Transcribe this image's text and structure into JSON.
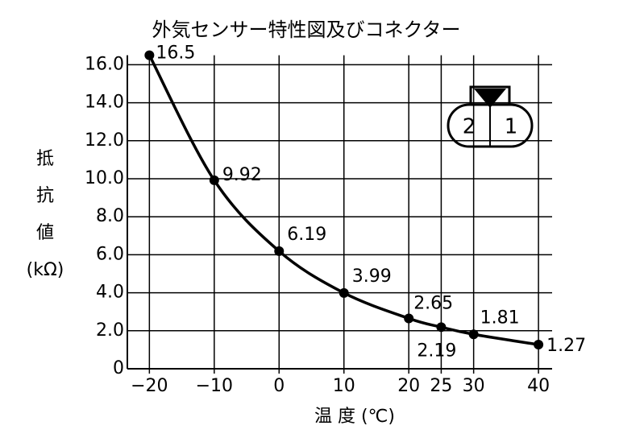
{
  "chart_data": {
    "type": "line",
    "title": "外気センサー特性図及びコネクター",
    "ylabel_lines": [
      "抵",
      "抗",
      "値",
      "(kΩ)"
    ],
    "xlabel": "温 度 (℃)",
    "x": [
      -20,
      -10,
      0,
      10,
      20,
      25,
      30,
      40
    ],
    "series": [
      {
        "color": "#000000",
        "values": [
          16.5,
          9.92,
          6.19,
          3.99,
          2.65,
          2.19,
          1.81,
          1.27
        ]
      }
    ],
    "xlim": [
      -23.4,
      42.1
    ],
    "ylim": [
      0,
      16.5
    ],
    "xticks": [
      {
        "value": -20,
        "label": "−20"
      },
      {
        "value": -10,
        "label": "−10"
      },
      0,
      10,
      20,
      25,
      30,
      40
    ],
    "yticks": [
      0,
      {
        "value": 2,
        "label": "2.0"
      },
      {
        "value": 4,
        "label": "4.0"
      },
      {
        "value": 6,
        "label": "6.0"
      },
      {
        "value": 8,
        "label": "8.0"
      },
      {
        "value": 10,
        "label": "10.0"
      },
      {
        "value": 12,
        "label": "12.0"
      },
      {
        "value": 14,
        "label": "14.0"
      },
      {
        "value": 16,
        "label": "16.0"
      }
    ],
    "grid": true
  },
  "connector_pins": [
    "2",
    "1"
  ]
}
